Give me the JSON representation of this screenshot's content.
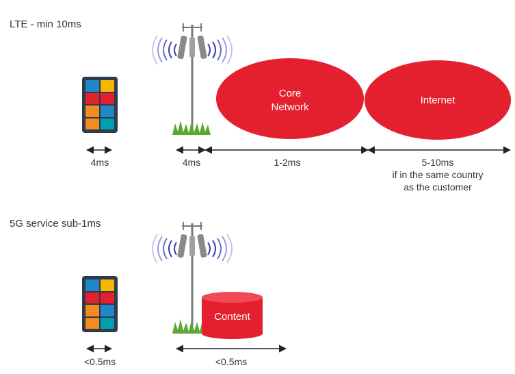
{
  "lte": {
    "heading": "LTE - min 10ms",
    "core_network": "Core\nNetwork",
    "internet": "Internet",
    "labels": {
      "device": "4ms",
      "radio": "4ms",
      "core": "1-2ms",
      "internet_line1": "5-10ms",
      "internet_line2": "if in the same country",
      "internet_line3": "as the customer"
    }
  },
  "fiveg": {
    "heading": "5G service sub-1ms",
    "content": "Content",
    "labels": {
      "device": "<0.5ms",
      "edge": "<0.5ms"
    }
  },
  "colors": {
    "red": "#e5202e",
    "arrow": "#222222",
    "grass": "#5aa832",
    "tower": "#7a7a7a",
    "wave": "#3a3aa0"
  },
  "tablet_tiles": [
    "#1e88c8",
    "#f5b800",
    "#e5202e",
    "#e5202e",
    "#f28c1e",
    "#1e88c8",
    "#f28c1e",
    "#00a0b0",
    "#7b3fa0",
    "#5aa832"
  ]
}
